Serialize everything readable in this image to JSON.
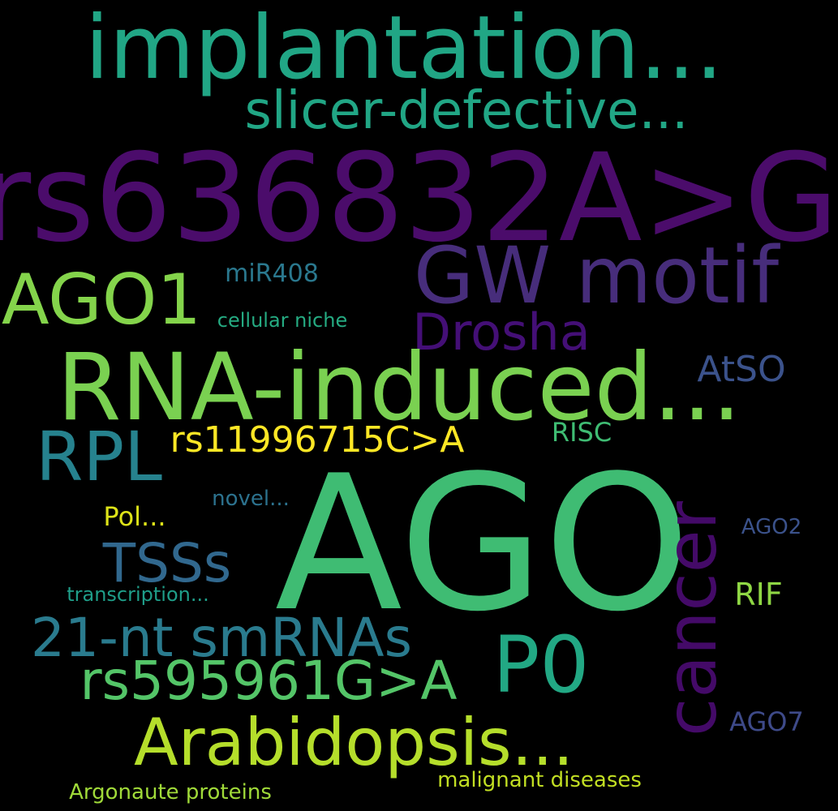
{
  "background": "#000000",
  "words": [
    {
      "key": "rs636",
      "text": "rs636832A>G",
      "color": "#4b0c6b"
    },
    {
      "key": "impl",
      "text": "implantation...",
      "color": "#21a685"
    },
    {
      "key": "slicer",
      "text": "slicer-defective...",
      "color": "#21a685"
    },
    {
      "key": "gw",
      "text": "GW motif",
      "color": "#472d7b"
    },
    {
      "key": "ago1",
      "text": "AGO1",
      "color": "#84d44b"
    },
    {
      "key": "mir408",
      "text": "miR408",
      "color": "#2a788e"
    },
    {
      "key": "drosha",
      "text": "Drosha",
      "color": "#440f76"
    },
    {
      "key": "niche",
      "text": "cellular niche",
      "color": "#25ab82"
    },
    {
      "key": "rnaind",
      "text": "RNA-induced...",
      "color": "#7ad151"
    },
    {
      "key": "atso",
      "text": "AtSO",
      "color": "#3b528b"
    },
    {
      "key": "rpl",
      "text": "RPL",
      "color": "#26828e"
    },
    {
      "key": "rs119",
      "text": "rs11996715C>A",
      "color": "#fde725"
    },
    {
      "key": "risc",
      "text": "RISC",
      "color": "#3fbc73"
    },
    {
      "key": "ago",
      "text": "AGO",
      "color": "#3fbc73"
    },
    {
      "key": "cancer",
      "text": "cancer",
      "color": "#440a68"
    },
    {
      "key": "novel",
      "text": "novel...",
      "color": "#2c728e"
    },
    {
      "key": "pol",
      "text": "Pol...",
      "color": "#dde318"
    },
    {
      "key": "ago2",
      "text": "AGO2",
      "color": "#3b528b"
    },
    {
      "key": "tsss",
      "text": "TSSs",
      "color": "#31688e"
    },
    {
      "key": "trans",
      "text": "transcription...",
      "color": "#1f9e89"
    },
    {
      "key": "rif",
      "text": "RIF",
      "color": "#8fd744"
    },
    {
      "key": "21nt",
      "text": "21-nt smRNAs",
      "color": "#2a7b8e"
    },
    {
      "key": "p0",
      "text": "P0",
      "color": "#22a884"
    },
    {
      "key": "rs595",
      "text": "rs595961G>A",
      "color": "#54c568"
    },
    {
      "key": "arab",
      "text": "Arabidopsis...",
      "color": "#b5de2b"
    },
    {
      "key": "ago7",
      "text": "AGO7",
      "color": "#3e4a89"
    },
    {
      "key": "malig",
      "text": "malignant diseases",
      "color": "#c2df23"
    },
    {
      "key": "argo",
      "text": "Argonaute proteins",
      "color": "#a0da39"
    }
  ]
}
